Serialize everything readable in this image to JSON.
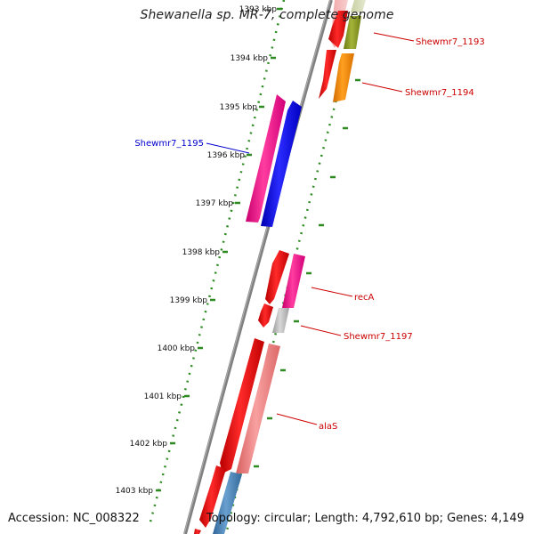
{
  "title": "Shewanella sp. MR-7, complete genome",
  "accession": "Accession: NC_008322",
  "topology": "Topology: circular; Length: 4,792,610 bp; Genes: 4,149",
  "ticks": [
    "1393 kbp",
    "1394 kbp",
    "1395 kbp",
    "1396 kbp",
    "1397 kbp",
    "1398 kbp",
    "1399 kbp",
    "1400 kbp",
    "1401 kbp",
    "1402 kbp",
    "1403 kbp"
  ],
  "gene_labels": [
    "Shewmr7_1193",
    "Shewmr7_1194",
    "Shewmr7_1195",
    "recA",
    "Shewmr7_1197",
    "alaS"
  ],
  "colors": {
    "backbone": "#808080",
    "tick_dots": "#2e8b22",
    "label_red": "#cc0000",
    "label_blue": "#0000cc",
    "red": "#ff0000",
    "pink": "#ff1493",
    "blue": "#0000ff",
    "olive": "#8b9b1e",
    "orange": "#ff8c00",
    "grey": "#c0c0c0",
    "salmon": "#f08080",
    "steelblue": "#4682b4"
  }
}
